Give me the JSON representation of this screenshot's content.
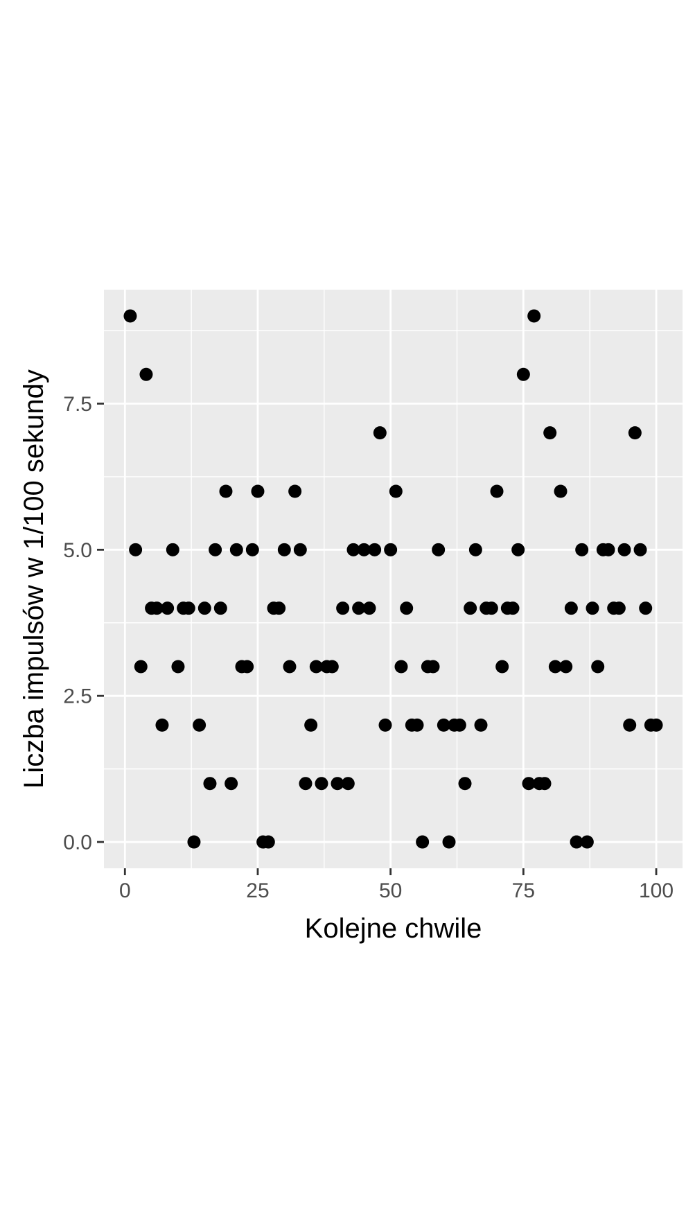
{
  "chart_data": {
    "type": "scatter",
    "title": "",
    "xlabel": "Kolejne chwile",
    "ylabel": "Liczba impulsów w 1/100 sekundy",
    "xlim": [
      -3.95,
      104.95
    ],
    "ylim": [
      -0.45,
      9.45
    ],
    "x_ticks": [
      0,
      25,
      50,
      75,
      100
    ],
    "x_tick_labels": [
      "0",
      "25",
      "50",
      "75",
      "100"
    ],
    "y_ticks": [
      0,
      2.5,
      5,
      7.5
    ],
    "y_tick_labels": [
      "0.0",
      "2.5",
      "5.0",
      "7.5"
    ],
    "x_minor_ticks": [
      12.5,
      37.5,
      62.5,
      87.5
    ],
    "y_minor_ticks": [
      1.25,
      3.75,
      6.25,
      8.75
    ],
    "grid": true,
    "legend": "none",
    "colors": {
      "panel_background": "#ebebeb",
      "grid_line": "#ffffff",
      "point": "#000000",
      "tick_label": "#4d4d4d",
      "tick_mark": "#333333",
      "axis_title": "#000000"
    },
    "series": [
      {
        "x": [
          1,
          2,
          3,
          4,
          5,
          6,
          7,
          8,
          9,
          10,
          11,
          12,
          13,
          14,
          15,
          16,
          17,
          18,
          19,
          20,
          21,
          22,
          23,
          24,
          25,
          26,
          27,
          28,
          29,
          30,
          31,
          32,
          33,
          34,
          35,
          36,
          37,
          38,
          39,
          40,
          41,
          42,
          43,
          44,
          45,
          46,
          47,
          48,
          49,
          50,
          51,
          52,
          53,
          54,
          55,
          56,
          57,
          58,
          59,
          60,
          61,
          62,
          63,
          64,
          65,
          66,
          67,
          68,
          69,
          70,
          71,
          72,
          73,
          74,
          75,
          76,
          77,
          78,
          79,
          80,
          81,
          82,
          83,
          84,
          85,
          86,
          87,
          88,
          89,
          90,
          91,
          92,
          93,
          94,
          95,
          96,
          97,
          98,
          99,
          100
        ],
        "y": [
          9,
          5,
          3,
          8,
          4,
          4,
          2,
          4,
          5,
          3,
          4,
          4,
          0,
          2,
          4,
          1,
          5,
          4,
          6,
          1,
          5,
          3,
          3,
          5,
          6,
          0,
          0,
          4,
          4,
          5,
          3,
          6,
          5,
          1,
          2,
          3,
          1,
          3,
          3,
          1,
          4,
          1,
          5,
          4,
          5,
          4,
          5,
          7,
          2,
          5,
          6,
          3,
          4,
          2,
          2,
          0,
          3,
          3,
          5,
          2,
          0,
          2,
          2,
          1,
          4,
          5,
          2,
          4,
          4,
          6,
          3,
          4,
          4,
          5,
          8,
          1,
          9,
          1,
          1,
          7,
          3,
          6,
          3,
          4,
          0,
          5,
          0,
          4,
          3,
          5,
          5,
          4,
          4,
          5,
          2,
          7,
          5,
          4,
          2,
          2
        ]
      }
    ]
  }
}
